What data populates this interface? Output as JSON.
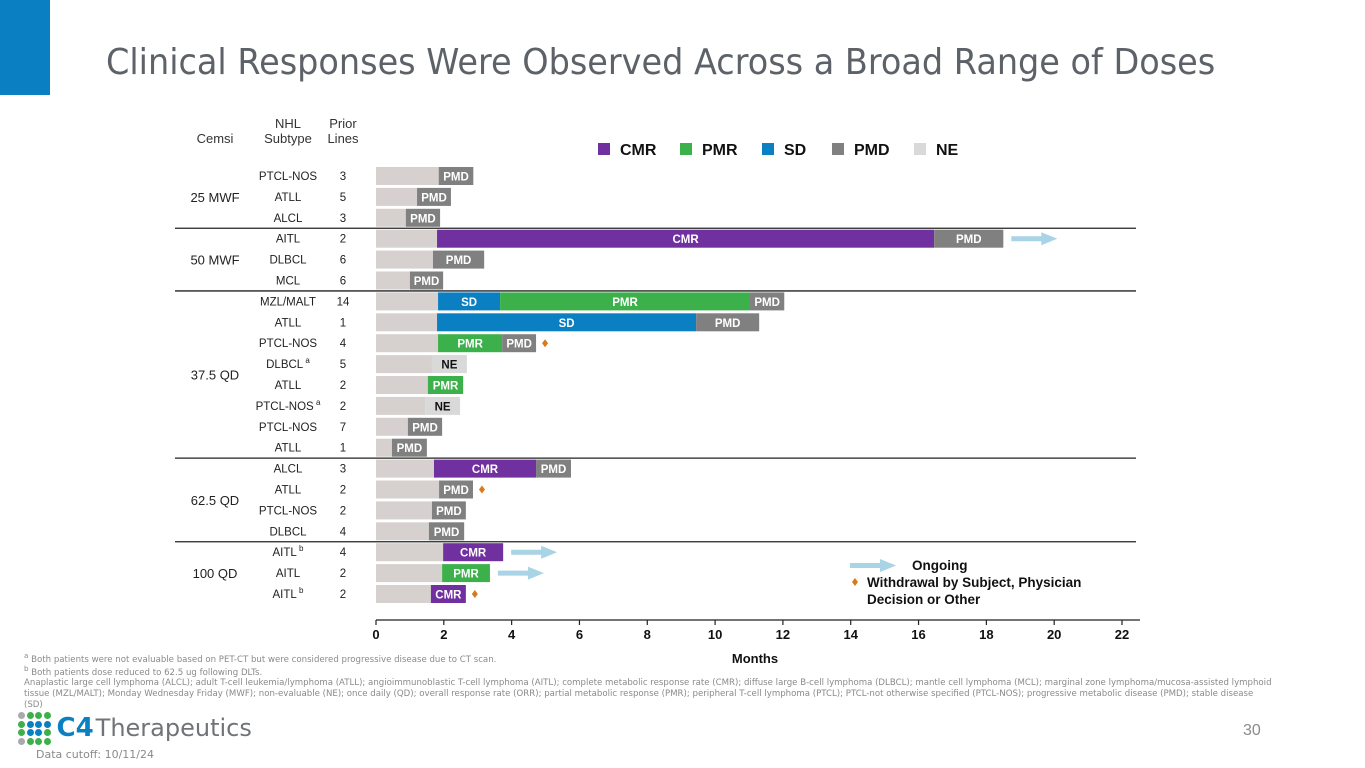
{
  "slide": {
    "title": "Clinical Responses Were Observed Across a Broad Range of Doses",
    "page_number": "30",
    "data_cutoff": "Data cutoff: 10/11/24",
    "logo": {
      "mark": "C4",
      "name": "Therapeutics"
    },
    "footnotes": [
      {
        "mark": "a",
        "text": "Both patients were not evaluable based on PET-CT but were considered progressive disease due to CT scan."
      },
      {
        "mark": "b",
        "text": "Both patients dose reduced to 62.5 ug following DLTs."
      }
    ],
    "abbreviations": "Anaplastic large cell lymphoma (ALCL); adult T-cell leukemia/lymphoma (ATLL); angioimmunoblastic T-cell lymphoma (AITL); complete metabolic response rate (CMR); diffuse large B-cell lymphoma (DLBCL); mantle cell lymphoma (MCL); marginal zone lymphoma/mucosa-assisted lymphoid tissue (MZL/MALT); Monday Wednesday Friday (MWF); non-evaluable (NE); once daily (QD); overall response rate (ORR); partial metabolic response (PMR); peripheral T-cell lymphoma (PTCL); PTCL-not otherwise specified (PTCL-NOS); progressive metabolic disease (PMD); stable disease (SD)"
  },
  "chart_data": {
    "type": "swimmer",
    "xlabel": "Months",
    "xlim": [
      0,
      22
    ],
    "xticks": [
      0,
      2,
      4,
      6,
      8,
      10,
      12,
      14,
      16,
      18,
      20,
      22
    ],
    "grid": false,
    "column_headers": {
      "dose": "Cemsi",
      "subtype": "NHL\nSubtype",
      "prior_lines": "Prior\nLines"
    },
    "legend": {
      "placement": "top",
      "entries": [
        {
          "key": "CMR",
          "label": "CMR",
          "color": "#7030a0"
        },
        {
          "key": "PMR",
          "label": "PMR",
          "color": "#3cb04a"
        },
        {
          "key": "SD",
          "label": "SD",
          "color": "#0a7fc1"
        },
        {
          "key": "PMD",
          "label": "PMD",
          "color": "#808080"
        },
        {
          "key": "NE",
          "label": "NE",
          "color": "#d9d9d9"
        }
      ],
      "markers": [
        {
          "key": "ongoing",
          "label": "Ongoing",
          "color": "#a8d4e6"
        },
        {
          "key": "withdrawal",
          "label": "Withdrawal by Subject, Physician\nDecision or Other",
          "color": "#d97a1a"
        }
      ]
    },
    "lead_in_color": "#d6d1ce",
    "groups": [
      {
        "dose": "25 MWF",
        "rows": [
          {
            "subtype": "PTCL-NOS",
            "prior_lines": "3",
            "segments": [
              [
                "PMD",
                1.85,
                2.87
              ]
            ]
          },
          {
            "subtype": "ATLL",
            "prior_lines": "5",
            "segments": [
              [
                "PMD",
                1.21,
                2.21
              ]
            ]
          },
          {
            "subtype": "ALCL",
            "prior_lines": "3",
            "segments": [
              [
                "PMD",
                0.88,
                1.89
              ]
            ]
          }
        ]
      },
      {
        "dose": "50 MWF",
        "rows": [
          {
            "subtype": "AITL",
            "prior_lines": "2",
            "segments": [
              [
                "CMR",
                1.8,
                16.46
              ],
              [
                "PMD",
                16.46,
                18.5
              ]
            ],
            "marker": "ongoing"
          },
          {
            "subtype": "DLBCL",
            "prior_lines": "6",
            "segments": [
              [
                "PMD",
                1.68,
                3.19
              ]
            ]
          },
          {
            "subtype": "MCL",
            "prior_lines": "6",
            "segments": [
              [
                "PMD",
                1.0,
                1.98
              ]
            ]
          }
        ]
      },
      {
        "dose": "37.5 QD",
        "rows": [
          {
            "subtype": "MZL/MALT",
            "prior_lines": "14",
            "segments": [
              [
                "SD",
                1.83,
                3.66
              ],
              [
                "PMR",
                3.66,
                11.03
              ],
              [
                "PMD",
                11.03,
                12.04
              ]
            ]
          },
          {
            "subtype": "ATLL",
            "prior_lines": "1",
            "segments": [
              [
                "SD",
                1.8,
                9.44
              ],
              [
                "PMD",
                9.44,
                11.3
              ]
            ]
          },
          {
            "subtype": "PTCL-NOS",
            "prior_lines": "4",
            "segments": [
              [
                "PMR",
                1.83,
                3.72
              ],
              [
                "PMD",
                3.72,
                4.72
              ]
            ],
            "marker": "withdrawal"
          },
          {
            "subtype": "DLBCL",
            "footnote": "a",
            "prior_lines": "5",
            "segments": [
              [
                "NE",
                1.65,
                2.68
              ]
            ]
          },
          {
            "subtype": "ATLL",
            "prior_lines": "2",
            "segments": [
              [
                "PMR",
                1.53,
                2.57
              ]
            ]
          },
          {
            "subtype": "PTCL-NOS",
            "footnote": "a",
            "prior_lines": "2",
            "segments": [
              [
                "NE",
                1.45,
                2.48
              ]
            ]
          },
          {
            "subtype": "PTCL-NOS",
            "prior_lines": "7",
            "segments": [
              [
                "PMD",
                0.94,
                1.95
              ]
            ]
          },
          {
            "subtype": "ATLL",
            "prior_lines": "1",
            "segments": [
              [
                "PMD",
                0.47,
                1.5
              ]
            ]
          }
        ]
      },
      {
        "dose": "62.5 QD",
        "rows": [
          {
            "subtype": "ALCL",
            "prior_lines": "3",
            "segments": [
              [
                "CMR",
                1.71,
                4.72
              ],
              [
                "PMD",
                4.72,
                5.75
              ]
            ]
          },
          {
            "subtype": "ATLL",
            "prior_lines": "2",
            "segments": [
              [
                "PMD",
                1.86,
                2.86
              ]
            ],
            "marker": "withdrawal"
          },
          {
            "subtype": "PTCL-NOS",
            "prior_lines": "2",
            "segments": [
              [
                "PMD",
                1.65,
                2.65
              ]
            ]
          },
          {
            "subtype": "DLBCL",
            "prior_lines": "4",
            "segments": [
              [
                "PMD",
                1.56,
                2.6
              ]
            ]
          }
        ]
      },
      {
        "dose": "100 QD",
        "rows": [
          {
            "subtype": "AITL",
            "footnote": "b",
            "prior_lines": "4",
            "segments": [
              [
                "CMR",
                1.98,
                3.75
              ]
            ],
            "marker": "ongoing"
          },
          {
            "subtype": "AITL",
            "prior_lines": "2",
            "segments": [
              [
                "PMR",
                1.95,
                3.36
              ]
            ],
            "marker": "ongoing"
          },
          {
            "subtype": "AITL",
            "footnote": "b",
            "prior_lines": "2",
            "segments": [
              [
                "CMR",
                1.62,
                2.65
              ]
            ],
            "marker": "withdrawal"
          }
        ]
      }
    ]
  }
}
